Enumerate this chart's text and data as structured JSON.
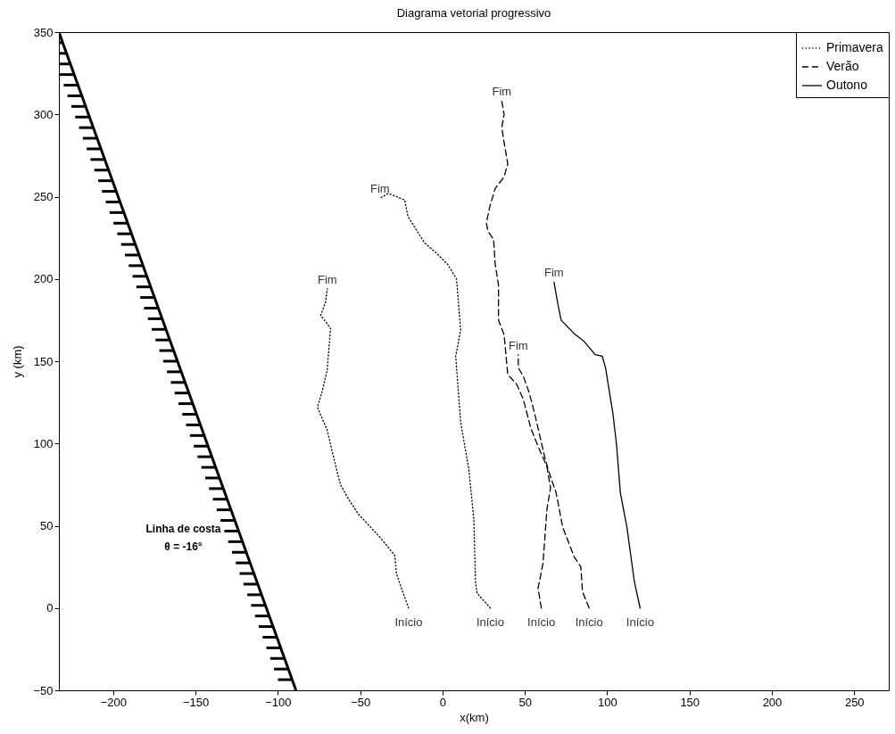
{
  "chart_data": {
    "type": "line",
    "title": "Diagrama vetorial progressivo",
    "xlabel": "x(km)",
    "ylabel": "y (km)",
    "xlim": [
      -233,
      271
    ],
    "ylim": [
      -50,
      350
    ],
    "xticks": [
      -200,
      -150,
      -100,
      -50,
      0,
      50,
      100,
      150,
      200,
      250
    ],
    "yticks": [
      -50,
      0,
      50,
      100,
      150,
      200,
      250,
      300,
      350
    ],
    "grid": false,
    "legend": "top right",
    "series": [
      {
        "name": "Primavera",
        "color": "#000000",
        "line_style": "dotted",
        "x": [
          -20.6,
          -25,
          -28,
          -29,
          -38,
          -51,
          -57,
          -62,
          -67,
          -70,
          -76,
          -73,
          -70,
          -69,
          -68,
          -74,
          -71,
          -70,
          null,
          29,
          21,
          20,
          19,
          16,
          11,
          8,
          11,
          8.5,
          3,
          -4,
          -11,
          -21,
          -23,
          -33,
          -38
        ],
        "values": [
          0,
          12,
          21,
          32,
          43,
          57,
          66,
          75,
          95,
          108,
          122,
          132,
          145,
          158,
          170,
          178,
          186,
          194,
          null,
          0,
          9,
          16,
          54,
          84,
          113,
          153,
          169,
          200,
          209,
          216,
          222,
          238,
          248,
          252,
          249
        ]
      },
      {
        "name": "Verão",
        "color": "#000000",
        "line_style": "dashed",
        "x": [
          60,
          58,
          61,
          63.4,
          65.6,
          63.4,
          59,
          53.7,
          49,
          45,
          39.6,
          37.4,
          34,
          34,
          32,
          31,
          27.6,
          26.6,
          28.7,
          32,
          37.4,
          39.6,
          37.4,
          36,
          37.4,
          36,
          null,
          89,
          85,
          84,
          80,
          73,
          69,
          64.5,
          62,
          59,
          56,
          52.6,
          49,
          46,
          46
        ],
        "values": [
          0,
          12,
          27,
          60,
          73,
          86,
          96,
          109,
          127,
          136,
          142,
          166,
          175,
          196,
          209,
          224,
          229,
          234,
          244,
          255,
          262,
          270,
          283,
          292,
          300,
          308,
          null,
          0,
          10,
          25,
          31,
          49,
          70,
          83,
          92,
          105,
          118,
          131,
          141,
          146,
          154
        ]
      },
      {
        "name": "Outono",
        "color": "#000000",
        "line_style": "solid",
        "x": [
          120,
          116.5,
          112,
          108,
          105.7,
          103.5,
          99,
          97,
          92.7,
          86,
          79.7,
          72,
          70,
          67.7
        ],
        "values": [
          0,
          16,
          49,
          70,
          99,
          118,
          146,
          153,
          154,
          162,
          167,
          175,
          185,
          198
        ]
      },
      {
        "type": "line",
        "color": "#000000",
        "line_style": "solid",
        "x": [
          -233,
          -89
        ],
        "values": [
          350,
          -50
        ]
      }
    ],
    "annotations": [
      {
        "text": "Início",
        "x": -20.6,
        "y": 0
      },
      {
        "text": "Início",
        "x": 29,
        "y": 0
      },
      {
        "text": "Início",
        "x": 60,
        "y": 0
      },
      {
        "text": "Início",
        "x": 89,
        "y": 0
      },
      {
        "text": "Início",
        "x": 120,
        "y": 0
      },
      {
        "text": "Fim",
        "x": -70,
        "y": 194
      },
      {
        "text": "Fim",
        "x": -38,
        "y": 249
      },
      {
        "text": "Fim",
        "x": 36,
        "y": 308
      },
      {
        "text": "Fim",
        "x": 46,
        "y": 154
      },
      {
        "text": "Fim",
        "x": 67.7,
        "y": 198
      },
      "Linha de costa",
      "θ = -16°"
    ]
  }
}
